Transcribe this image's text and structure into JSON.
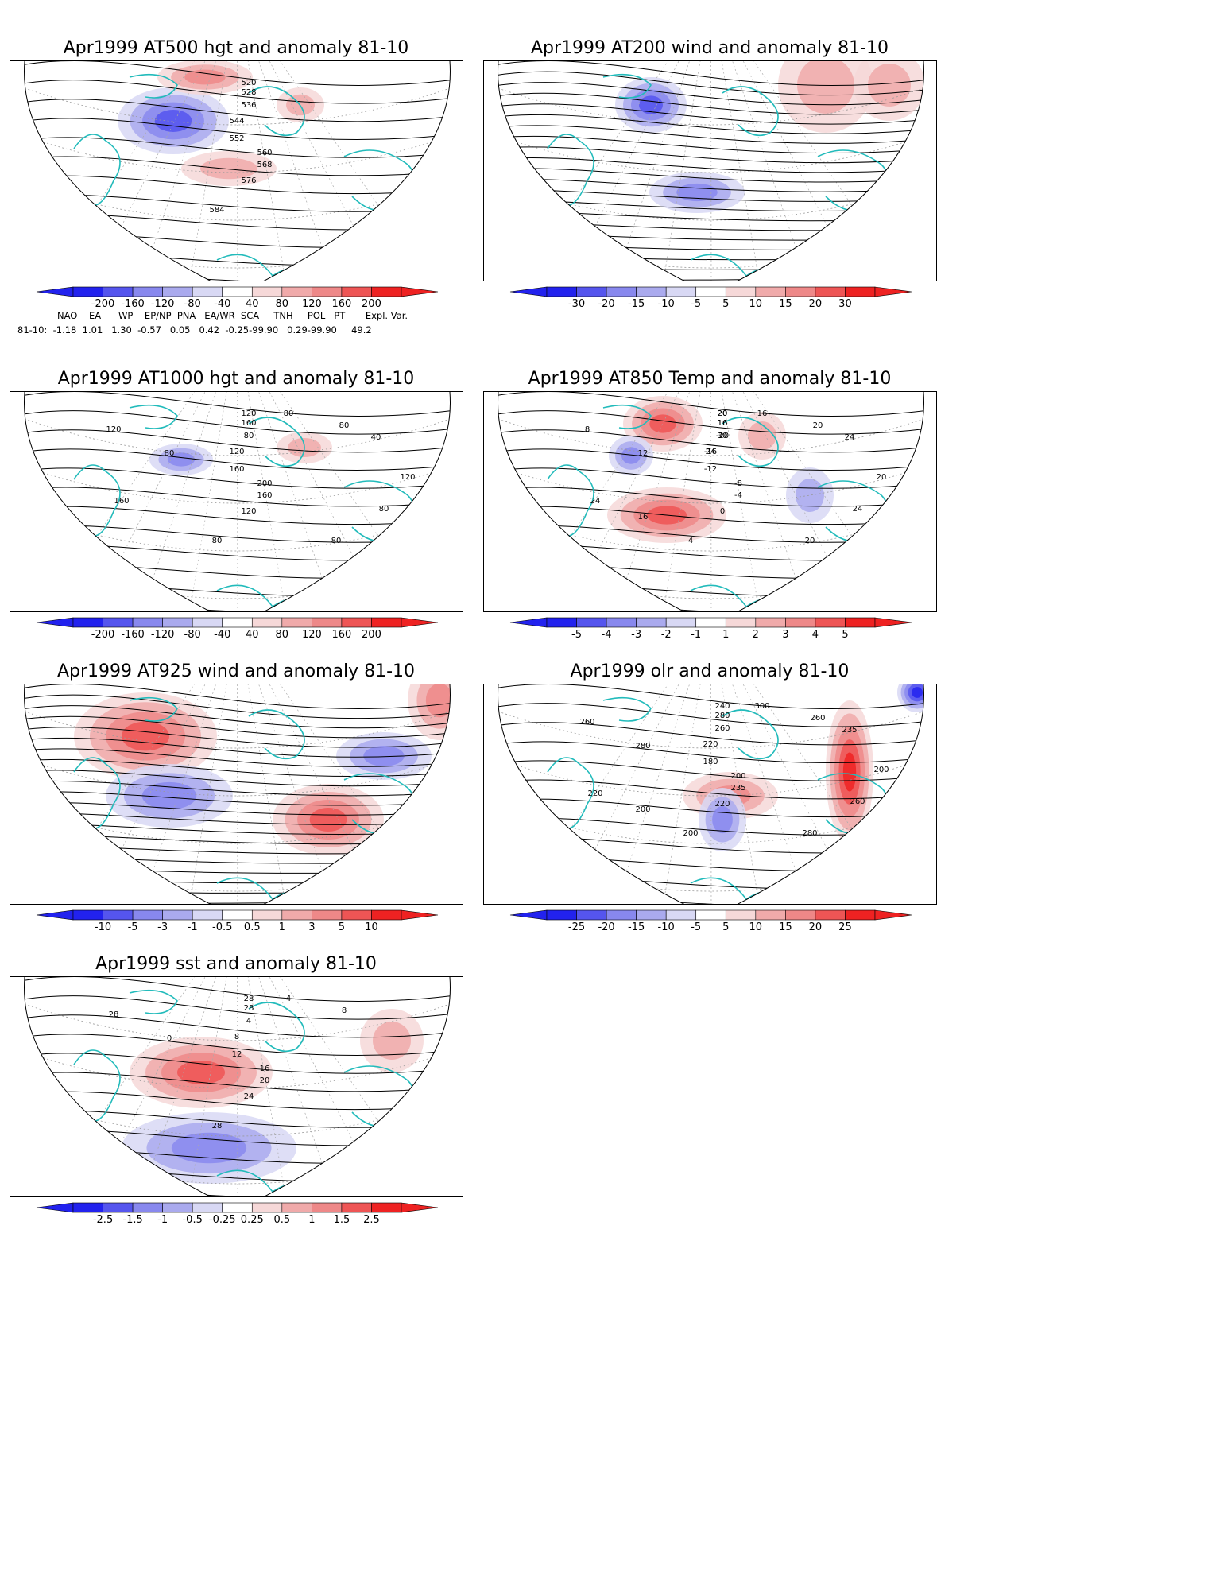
{
  "panels": [
    {
      "id": "at500",
      "title": "Apr1999 AT500 hgt and anomaly 81-10",
      "field": "height",
      "contour_labels": [
        "520",
        "528",
        "536",
        "544",
        "552",
        "560",
        "568",
        "576",
        "584"
      ],
      "colorbar": {
        "labels": [
          "-200",
          "-160",
          "-120",
          "-80",
          "-40",
          "40",
          "80",
          "120",
          "160",
          "200"
        ]
      },
      "anomaly_centers": [
        {
          "sign": "neg",
          "strength": 0.85
        },
        {
          "sign": "pos",
          "strength": 0.6
        },
        {
          "sign": "pos",
          "strength": 0.45
        },
        {
          "sign": "pos",
          "strength": 0.3
        }
      ]
    },
    {
      "id": "at200",
      "title": "Apr1999 AT200 wind and anomaly 81-10",
      "field": "wind",
      "contour_labels": [],
      "colorbar": {
        "labels": [
          "-30",
          "-20",
          "-15",
          "-10",
          "-5",
          "5",
          "10",
          "15",
          "20",
          "30"
        ]
      },
      "anomaly_centers": [
        {
          "sign": "neg",
          "strength": 0.7
        },
        {
          "sign": "neg",
          "strength": 0.5
        },
        {
          "sign": "pos",
          "strength": 0.45
        },
        {
          "sign": "pos",
          "strength": 0.4
        }
      ]
    },
    {
      "id": "at1000",
      "title": "Apr1999 AT1000 hgt and anomaly 81-10",
      "field": "height",
      "contour_labels": [
        "120",
        "160",
        "80",
        "120",
        "160",
        "200",
        "160",
        "120",
        "80",
        "120",
        "80",
        "80",
        "80",
        "40",
        "160",
        "120",
        "80",
        "80"
      ],
      "colorbar": {
        "labels": [
          "-200",
          "-160",
          "-120",
          "-80",
          "-40",
          "40",
          "80",
          "120",
          "160",
          "200"
        ]
      },
      "anomaly_centers": [
        {
          "sign": "neg",
          "strength": 0.5
        },
        {
          "sign": "pos",
          "strength": 0.3
        }
      ]
    },
    {
      "id": "at850",
      "title": "Apr1999 AT850 Temp and anomaly 81-10",
      "field": "temperature",
      "contour_labels": [
        "20",
        "16",
        "-20",
        "-16",
        "-12",
        "-8",
        "-4",
        "0",
        "4",
        "8",
        "12",
        "16",
        "20",
        "24",
        "24",
        "20",
        "24",
        "20",
        "16",
        "20",
        "16",
        "30",
        "24"
      ],
      "colorbar": {
        "labels": [
          "-5",
          "-4",
          "-3",
          "-2",
          "-1",
          "1",
          "2",
          "3",
          "4",
          "5"
        ]
      },
      "anomaly_centers": [
        {
          "sign": "pos",
          "strength": 0.8
        },
        {
          "sign": "pos",
          "strength": 0.75
        },
        {
          "sign": "neg",
          "strength": 0.55
        },
        {
          "sign": "neg",
          "strength": 0.45
        },
        {
          "sign": "pos",
          "strength": 0.4
        }
      ]
    },
    {
      "id": "at925",
      "title": "Apr1999 AT925 wind and anomaly 81-10",
      "field": "wind",
      "contour_labels": [],
      "colorbar": {
        "labels": [
          "-10",
          "-5",
          "-3",
          "-1",
          "-0.5",
          "0.5",
          "1",
          "3",
          "5",
          "10"
        ]
      },
      "anomaly_centers": [
        {
          "sign": "pos",
          "strength": 0.75
        },
        {
          "sign": "pos",
          "strength": 0.7
        },
        {
          "sign": "neg",
          "strength": 0.6
        },
        {
          "sign": "neg",
          "strength": 0.55
        },
        {
          "sign": "pos",
          "strength": 0.6
        }
      ]
    },
    {
      "id": "olr",
      "title": "Apr1999 olr and anomaly 81-10",
      "field": "olr",
      "contour_labels": [
        "240",
        "280",
        "260",
        "220",
        "180",
        "200",
        "235",
        "220",
        "200",
        "260",
        "280",
        "300",
        "260",
        "235",
        "220",
        "200",
        "260",
        "280",
        "200"
      ],
      "colorbar": {
        "labels": [
          "-25",
          "-20",
          "-15",
          "-10",
          "-5",
          "5",
          "10",
          "15",
          "20",
          "25"
        ]
      },
      "anomaly_centers": [
        {
          "sign": "pos",
          "strength": 0.9
        },
        {
          "sign": "pos",
          "strength": 0.5
        },
        {
          "sign": "neg",
          "strength": 0.55
        },
        {
          "sign": "neg",
          "strength": 0.9
        }
      ]
    },
    {
      "id": "sst",
      "title": "Apr1999 sst and anomaly 81-10",
      "field": "sst",
      "contour_labels": [
        "28",
        "28",
        "4",
        "8",
        "12",
        "16",
        "20",
        "24",
        "28",
        "28",
        "0",
        "4",
        "8"
      ],
      "colorbar": {
        "labels": [
          "-2.5",
          "-1.5",
          "-1",
          "-0.5",
          "-0.25",
          "0.25",
          "0.5",
          "1",
          "1.5",
          "2.5"
        ]
      },
      "anomaly_centers": [
        {
          "sign": "pos",
          "strength": 0.75
        },
        {
          "sign": "neg",
          "strength": 0.55
        },
        {
          "sign": "pos",
          "strength": 0.3
        }
      ]
    }
  ],
  "teleconnection": {
    "headers": "NAO    EA      WP    EP/NP  PNA   EA/WR  SCA     TNH     POL   PT       Expl. Var.",
    "values": "81-10:  -1.18  1.01   1.30  -0.57   0.05   0.42  -0.25-99.90   0.29-99.90     49.2"
  },
  "colors": {
    "coast": "#22bbbb",
    "contour": "#000000",
    "neg_scale": [
      "#2222ee",
      "#5555ee",
      "#8888ee",
      "#aaaaee",
      "#d8d8f4"
    ],
    "pos_scale": [
      "#f6d8d8",
      "#f0aaaa",
      "#ee8888",
      "#ee5555",
      "#ee2222"
    ]
  }
}
